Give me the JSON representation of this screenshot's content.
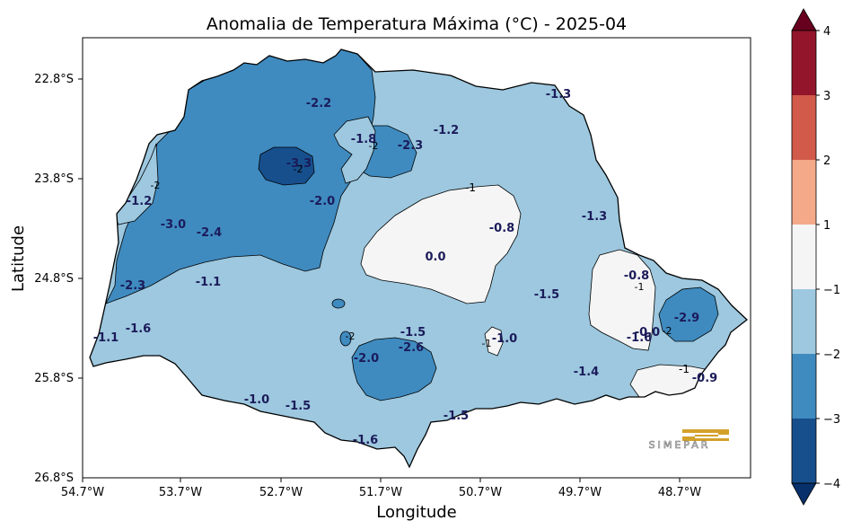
{
  "title": "Anomalia de Temperatura Máxima (°C) - 2025-04",
  "xlabel": "Longitude",
  "ylabel": "Latitude",
  "x_ticks": [
    "54.7°W",
    "53.7°W",
    "52.7°W",
    "51.7°W",
    "50.7°W",
    "49.7°W",
    "48.7°W"
  ],
  "y_ticks": [
    "22.8°S",
    "23.8°S",
    "24.8°S",
    "25.8°S",
    "26.8°S"
  ],
  "colorbar": {
    "ticks": [
      "−4",
      "−3",
      "−2",
      "−1",
      "1",
      "2",
      "3",
      "4"
    ],
    "colors": [
      "#08306b",
      "#174f8d",
      "#3f8bc0",
      "#9dc8df",
      "#f5f5f5",
      "#f4a989",
      "#d15a4a",
      "#93152b",
      "#67001f"
    ]
  },
  "colors": {
    "land_base": "#9dc8df",
    "mid_blue": "#3f8bc0",
    "dark_blue": "#174f8d",
    "near_zero": "#f5f5f5",
    "label_text": "#1b1b5a",
    "logo_gold": "#d4a12a",
    "logo_gray": "#6b6b6b"
  },
  "value_labels": [
    "-2.2",
    "-1.3",
    "-1.8",
    "-2.3",
    "-1.2",
    "-3.3",
    "-1",
    "-1.2",
    "-2.0",
    "-3.0",
    "-2.4",
    "-0.8",
    "-1.3",
    "0.0",
    "-2.3",
    "-1.1",
    "-0.8",
    "-1.5",
    "-1.6",
    "-1.1",
    "-2.9",
    "-1.5",
    "-1.0",
    "-2.6",
    "-1.6",
    "-0.0",
    "-2.0",
    "-1.4",
    "-1",
    "-0.9",
    "-1.0",
    "-1.5",
    "-1.5",
    "-1.6"
  ],
  "contour_labels": [
    "-2",
    "-2",
    "-2",
    "-2",
    "-1",
    "-1",
    "-2"
  ],
  "logo_text": "SIMEPAR"
}
